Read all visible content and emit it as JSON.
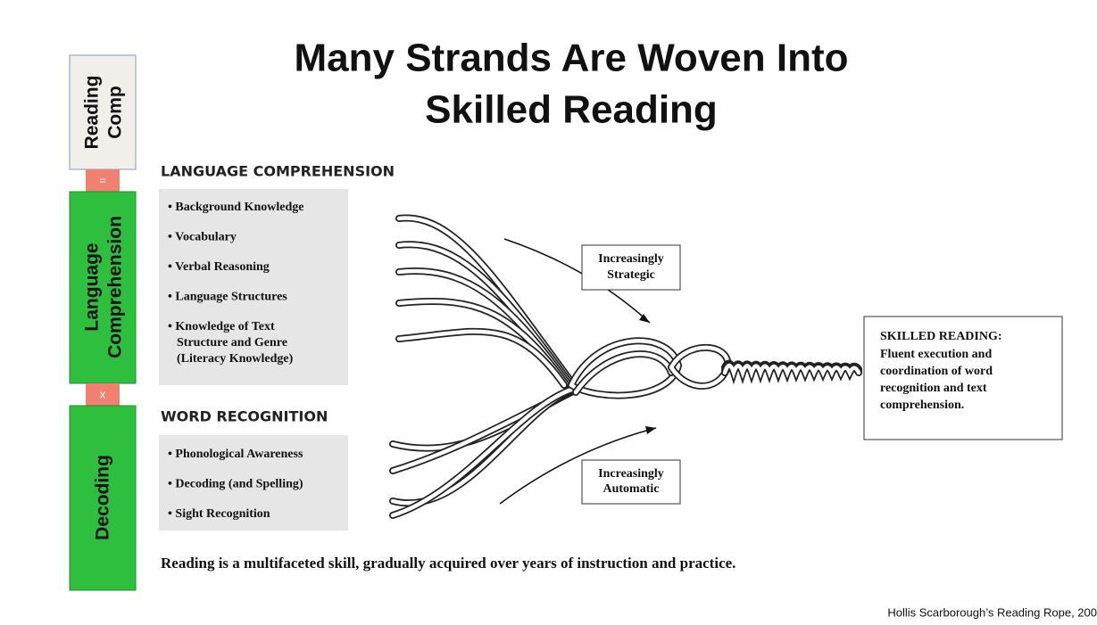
{
  "title_lines": [
    "Many Strands Are Woven Into",
    "Skilled Reading"
  ],
  "sidebar": {
    "reading_comp": [
      "Reading",
      "Comp"
    ],
    "equals": "=",
    "language_comprehension": [
      "Language",
      "Comprehension"
    ],
    "times": "x",
    "decoding": "Decoding"
  },
  "sections": [
    {
      "heading": "LANGUAGE COMPREHENSION",
      "items": [
        [
          "• Background Knowledge"
        ],
        [
          "• Vocabulary"
        ],
        [
          "• Verbal Reasoning"
        ],
        [
          "• Language Structures"
        ],
        [
          "• Knowledge of Text",
          "Structure and Genre",
          "(Literacy Knowledge)"
        ]
      ]
    },
    {
      "heading": "WORD RECOGNITION",
      "items": [
        [
          "• Phonological Awareness"
        ],
        [
          "• Decoding (and Spelling)"
        ],
        [
          "• Sight Recognition"
        ]
      ]
    }
  ],
  "callouts": [
    [
      "Increasingly",
      "Strategic"
    ],
    [
      "Increasingly",
      "Automatic"
    ]
  ],
  "skilled_reading": {
    "heading": "SKILLED READING:",
    "lines": [
      "Fluent execution and",
      "coordination of word",
      "recognition and text",
      "comprehension."
    ]
  },
  "footer": "Reading is a multifaceted skill, gradually acquired over years of instruction and practice.",
  "citation": "Hollis Scarborough’s Reading Rope, 200"
}
